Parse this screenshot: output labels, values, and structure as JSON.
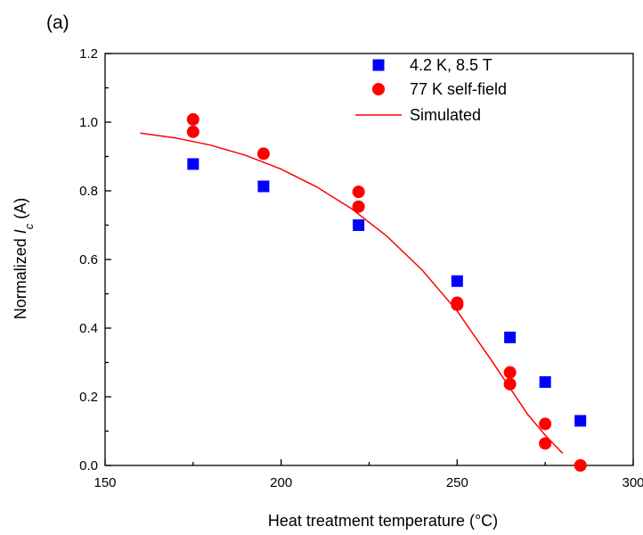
{
  "chart_data": {
    "type": "scatter",
    "panel_label": "(a)",
    "xlabel": "Heat treatment temperature (°C)",
    "ylabel_prefix": "Normalized ",
    "ylabel_symbol": "I",
    "ylabel_subscript": "c",
    "ylabel_suffix": " (A)",
    "xlim": [
      150,
      300
    ],
    "ylim": [
      0.0,
      1.2
    ],
    "xticks": [
      150,
      200,
      250,
      300
    ],
    "yticks": [
      0.0,
      0.2,
      0.4,
      0.6,
      0.8,
      1.0,
      1.2
    ],
    "x_tick_labels": [
      "150",
      "200",
      "250",
      "300"
    ],
    "y_tick_labels": [
      "0.0",
      "0.2",
      "0.4",
      "0.6",
      "0.8",
      "1.0",
      "1.2"
    ],
    "grid": false,
    "legend_position": "top-right",
    "series": [
      {
        "name": "4.2 K, 8.5 T",
        "marker": "square",
        "color": "#0000ff",
        "points": [
          [
            175,
            0.878
          ],
          [
            195,
            0.813
          ],
          [
            222,
            0.7
          ],
          [
            250,
            0.537
          ],
          [
            265,
            0.373
          ],
          [
            275,
            0.243
          ],
          [
            285,
            0.13
          ]
        ]
      },
      {
        "name": "77 K self-field",
        "marker": "circle",
        "color": "#ff0000",
        "points": [
          [
            175,
            1.008
          ],
          [
            175,
            0.972
          ],
          [
            195,
            0.908
          ],
          [
            222,
            0.797
          ],
          [
            222,
            0.754
          ],
          [
            250,
            0.474
          ],
          [
            250,
            0.468
          ],
          [
            265,
            0.271
          ],
          [
            265,
            0.237
          ],
          [
            275,
            0.121
          ],
          [
            275,
            0.064
          ],
          [
            285,
            0.0
          ]
        ]
      },
      {
        "name": "Simulated",
        "marker": "line",
        "color": "#ff0000",
        "points": [
          [
            160,
            0.968
          ],
          [
            170,
            0.954
          ],
          [
            180,
            0.933
          ],
          [
            190,
            0.903
          ],
          [
            200,
            0.863
          ],
          [
            210,
            0.812
          ],
          [
            220,
            0.748
          ],
          [
            230,
            0.668
          ],
          [
            240,
            0.57
          ],
          [
            250,
            0.45
          ],
          [
            260,
            0.302
          ],
          [
            270,
            0.149
          ],
          [
            275,
            0.088
          ],
          [
            280,
            0.035
          ]
        ]
      }
    ]
  }
}
